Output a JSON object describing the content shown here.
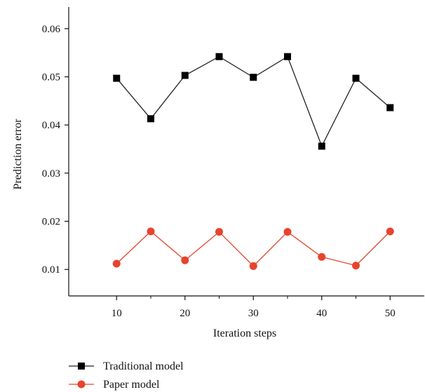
{
  "chart_data": {
    "type": "line",
    "xlabel": "Iteration steps",
    "ylabel": "Prediction error",
    "xlim": [
      3,
      55
    ],
    "ylim": [
      0.0045,
      0.0645
    ],
    "xticks": [
      10,
      20,
      30,
      40,
      50
    ],
    "xticks_minor": [
      15,
      25,
      35,
      45
    ],
    "yticks": [
      0.01,
      0.02,
      0.03,
      0.04,
      0.05,
      0.06
    ],
    "ytick_labels": [
      "0.01",
      "0.02",
      "0.03",
      "0.04",
      "0.05",
      "0.06"
    ],
    "grid": false,
    "legend_position": "bottom-left",
    "x": [
      10,
      15,
      20,
      25,
      30,
      35,
      40,
      45,
      50
    ],
    "series": [
      {
        "name": "Traditional model",
        "color": "#222222",
        "marker": "square",
        "values": [
          0.0497,
          0.0413,
          0.0503,
          0.0542,
          0.0499,
          0.0542,
          0.0356,
          0.0497,
          0.0436
        ]
      },
      {
        "name": "Paper model",
        "color": "#e8432d",
        "marker": "circle",
        "values": [
          0.0112,
          0.0179,
          0.0119,
          0.0178,
          0.0107,
          0.0178,
          0.0126,
          0.0108,
          0.0179
        ]
      }
    ]
  }
}
